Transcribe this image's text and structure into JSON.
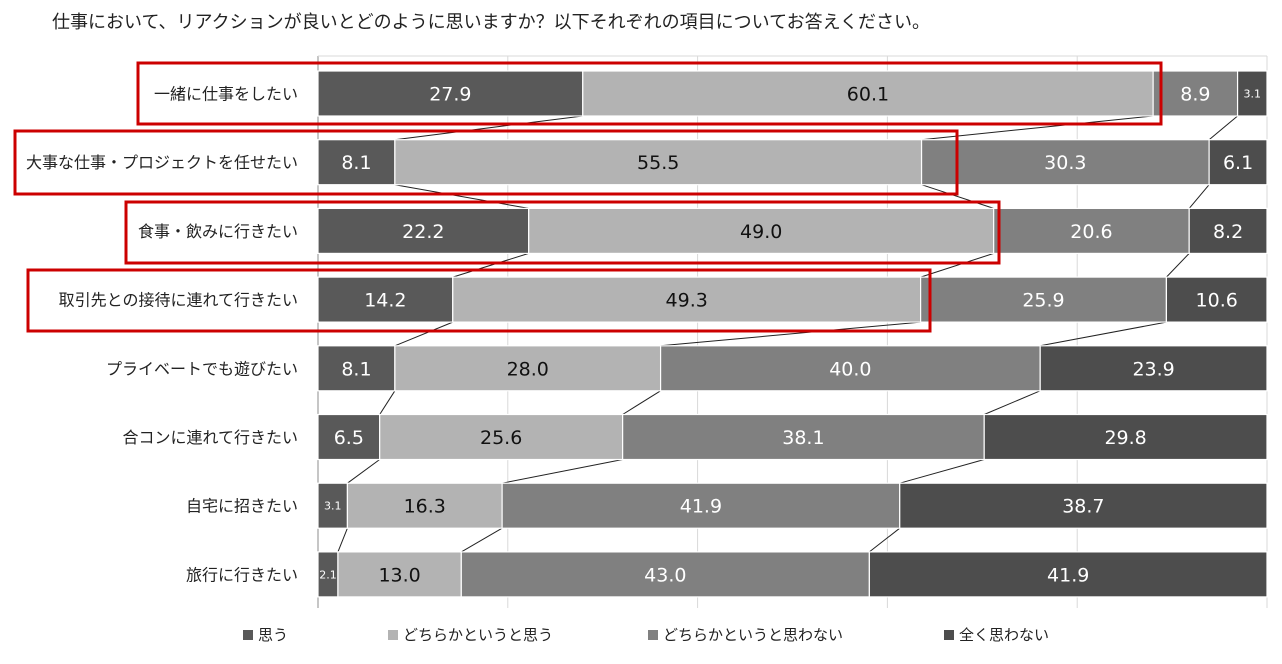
{
  "chart_data": {
    "type": "bar",
    "orientation": "horizontal",
    "stacked": "100%",
    "title": "仕事において、リアクションが良いとどのように思いますか？以下それぞれの項目についてお答えください。",
    "categories": [
      "一緒に仕事をしたい",
      "大事な仕事・プロジェクトを任せたい",
      "食事・飲みに行きたい",
      "取引先との接待に連れて行きたい",
      "プライベートでも遊びたい",
      "合コンに連れて行きたい",
      "自宅に招きたい",
      "旅行に行きたい"
    ],
    "series": [
      {
        "name": "思う",
        "color": "#595959",
        "values": [
          27.9,
          8.1,
          22.2,
          14.2,
          8.1,
          6.5,
          3.1,
          2.1
        ]
      },
      {
        "name": "どちらかというと思う",
        "color": "#b3b3b3",
        "values": [
          60.1,
          55.5,
          49.0,
          49.3,
          28.0,
          25.6,
          16.3,
          13.0
        ]
      },
      {
        "name": "どちらかというと思わない",
        "color": "#808080",
        "values": [
          8.9,
          30.3,
          20.6,
          25.9,
          40.0,
          38.1,
          41.9,
          43.0
        ]
      },
      {
        "name": "全く思わない",
        "color": "#4d4d4d",
        "values": [
          3.1,
          6.1,
          8.2,
          10.6,
          23.9,
          29.8,
          38.7,
          41.9
        ]
      }
    ],
    "xlim": [
      0,
      100
    ],
    "grid": true,
    "legend": "bottom",
    "highlighted_rows": [
      0,
      1,
      2,
      3
    ],
    "highlight_color": "#cc0000"
  }
}
